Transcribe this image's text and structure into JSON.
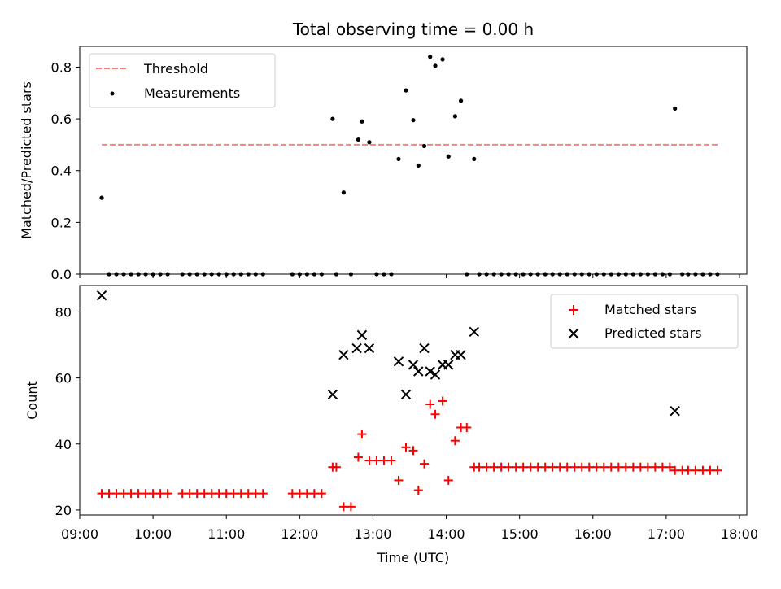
{
  "chart_data": [
    {
      "type": "scatter",
      "title": "Total observing time = 0.00 h",
      "xlabel": "",
      "ylabel": "Matched/Predicted stars",
      "ylim": [
        0,
        0.88
      ],
      "yticks": [
        "0.0",
        "0.2",
        "0.4",
        "0.6",
        "0.8"
      ],
      "ytick_values": [
        0,
        0.2,
        0.4,
        0.6,
        0.8
      ],
      "xlim_hours": [
        9.0,
        18.1
      ],
      "grid": false,
      "legend_placement": "upper-left",
      "threshold": {
        "name": "Threshold",
        "value": 0.5,
        "x_range_hours": [
          9.3,
          17.7
        ],
        "color": "#ff7f7f",
        "style": "dashed"
      },
      "measurements": {
        "name": "Measurements",
        "color": "#000000",
        "x_hours": [
          9.3,
          9.4,
          9.5,
          9.6,
          9.7,
          9.8,
          9.9,
          10.0,
          10.1,
          10.2,
          10.4,
          10.5,
          10.6,
          10.7,
          10.8,
          10.9,
          11.0,
          11.1,
          11.2,
          11.3,
          11.4,
          11.5,
          11.9,
          12.0,
          12.1,
          12.2,
          12.3,
          12.45,
          12.5,
          12.6,
          12.7,
          12.8,
          12.85,
          12.95,
          13.05,
          13.15,
          13.25,
          13.35,
          13.45,
          13.55,
          13.62,
          13.7,
          13.78,
          13.85,
          13.95,
          14.03,
          14.12,
          14.2,
          14.28,
          14.38,
          14.45,
          14.55,
          14.65,
          14.75,
          14.85,
          14.95,
          15.05,
          15.15,
          15.25,
          15.35,
          15.45,
          15.55,
          15.65,
          15.75,
          15.85,
          15.95,
          16.05,
          16.15,
          16.25,
          16.35,
          16.45,
          16.55,
          16.65,
          16.75,
          16.85,
          16.95,
          17.05,
          17.12,
          17.22,
          17.3,
          17.4,
          17.5,
          17.6,
          17.7
        ],
        "y": [
          0.295,
          0,
          0,
          0,
          0,
          0,
          0,
          0,
          0,
          0,
          0,
          0,
          0,
          0,
          0,
          0,
          0,
          0,
          0,
          0,
          0,
          0,
          0,
          0,
          0,
          0,
          0,
          0.6,
          0,
          0.315,
          0,
          0.52,
          0.59,
          0.51,
          0,
          0,
          0,
          0.445,
          0.71,
          0.595,
          0.42,
          0.495,
          0.84,
          0.805,
          0.83,
          0.455,
          0.61,
          0.67,
          0,
          0.445,
          0,
          0,
          0,
          0,
          0,
          0,
          0,
          0,
          0,
          0,
          0,
          0,
          0,
          0,
          0,
          0,
          0,
          0,
          0,
          0,
          0,
          0,
          0,
          0,
          0,
          0,
          0,
          0.64,
          0,
          0,
          0,
          0,
          0,
          0
        ]
      }
    },
    {
      "type": "scatter",
      "title": "",
      "xlabel": "Time (UTC)",
      "ylabel": "Count",
      "ylim": [
        18.5,
        88
      ],
      "yticks": [
        "20",
        "40",
        "60",
        "80"
      ],
      "ytick_values": [
        20,
        40,
        60,
        80
      ],
      "xticks": [
        "09:00",
        "10:00",
        "11:00",
        "12:00",
        "13:00",
        "14:00",
        "15:00",
        "16:00",
        "17:00",
        "18:00"
      ],
      "xtick_values_hours": [
        9,
        10,
        11,
        12,
        13,
        14,
        15,
        16,
        17,
        18
      ],
      "xlim_hours": [
        9.0,
        18.1
      ],
      "grid": false,
      "legend_placement": "upper-right",
      "series": [
        {
          "name": "Matched stars",
          "marker": "plus",
          "color": "#ff0000",
          "x_hours": [
            9.3,
            9.4,
            9.5,
            9.6,
            9.7,
            9.8,
            9.9,
            10.0,
            10.1,
            10.2,
            10.4,
            10.5,
            10.6,
            10.7,
            10.8,
            10.9,
            11.0,
            11.1,
            11.2,
            11.3,
            11.4,
            11.5,
            11.9,
            12.0,
            12.1,
            12.2,
            12.3,
            12.45,
            12.5,
            12.6,
            12.7,
            12.8,
            12.85,
            12.95,
            13.05,
            13.15,
            13.25,
            13.35,
            13.45,
            13.55,
            13.62,
            13.7,
            13.78,
            13.85,
            13.95,
            14.03,
            14.12,
            14.2,
            14.28,
            14.38,
            14.45,
            14.55,
            14.65,
            14.75,
            14.85,
            14.95,
            15.05,
            15.15,
            15.25,
            15.35,
            15.45,
            15.55,
            15.65,
            15.75,
            15.85,
            15.95,
            16.05,
            16.15,
            16.25,
            16.35,
            16.45,
            16.55,
            16.65,
            16.75,
            16.85,
            16.95,
            17.05,
            17.12,
            17.22,
            17.3,
            17.4,
            17.5,
            17.6,
            17.7
          ],
          "y": [
            25,
            25,
            25,
            25,
            25,
            25,
            25,
            25,
            25,
            25,
            25,
            25,
            25,
            25,
            25,
            25,
            25,
            25,
            25,
            25,
            25,
            25,
            25,
            25,
            25,
            25,
            25,
            33,
            33,
            21,
            21,
            36,
            43,
            35,
            35,
            35,
            35,
            29,
            39,
            38,
            26,
            34,
            52,
            49,
            53,
            29,
            41,
            45,
            45,
            33,
            33,
            33,
            33,
            33,
            33,
            33,
            33,
            33,
            33,
            33,
            33,
            33,
            33,
            33,
            33,
            33,
            33,
            33,
            33,
            33,
            33,
            33,
            33,
            33,
            33,
            33,
            33,
            32,
            32,
            32,
            32,
            32,
            32,
            32
          ]
        },
        {
          "name": "Predicted stars",
          "marker": "x",
          "color": "#000000",
          "x_hours": [
            9.3,
            12.45,
            12.6,
            12.78,
            12.85,
            12.95,
            13.35,
            13.45,
            13.55,
            13.62,
            13.7,
            13.78,
            13.85,
            13.95,
            14.03,
            14.12,
            14.2,
            14.38,
            17.12
          ],
          "y": [
            85,
            55,
            67,
            69,
            73,
            69,
            65,
            55,
            64,
            62,
            69,
            62,
            61,
            64,
            64,
            67,
            67,
            74,
            50
          ]
        }
      ]
    }
  ]
}
